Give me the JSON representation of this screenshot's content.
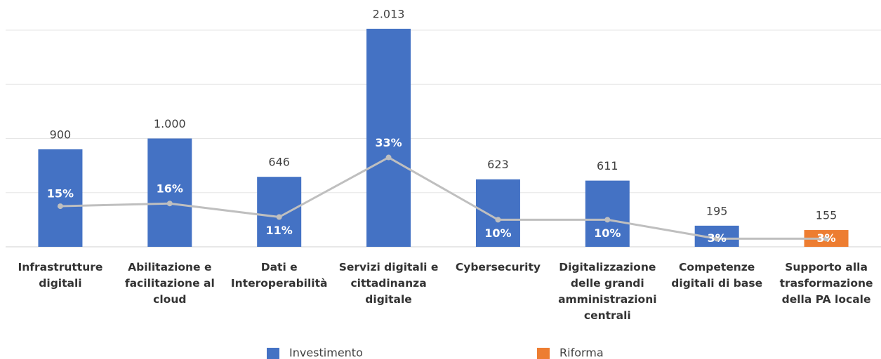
{
  "chart_data": {
    "type": "bar",
    "categories": [
      "Infrastrutture digitali",
      "Abilitazione e facilitazione al cloud",
      "Dati e Interoperabilità",
      "Servizi digitali e cittadinanza digitale",
      "Cybersecurity",
      "Digitalizzazione delle grandi amministrazioni centrali",
      "Competenze digitali di base",
      "Supporto alla trasformazione della PA locale"
    ],
    "series": [
      {
        "name": "Investimento",
        "color": "#4472c4",
        "values": [
          900,
          1000,
          646,
          2013,
          623,
          611,
          195,
          null
        ],
        "value_labels": [
          "900",
          "1.000",
          "646",
          "2.013",
          "623",
          "611",
          "195",
          null
        ]
      },
      {
        "name": "Riforma",
        "color": "#ed7d31",
        "values": [
          null,
          null,
          null,
          null,
          null,
          null,
          null,
          155
        ],
        "value_labels": [
          null,
          null,
          null,
          null,
          null,
          null,
          null,
          "155"
        ]
      }
    ],
    "line": {
      "type": "line",
      "axis": "y2",
      "color": "#bfbfbf",
      "values": [
        15,
        16,
        11,
        33,
        10,
        10,
        3,
        3
      ],
      "value_labels": [
        "15%",
        "16%",
        "11%",
        "33%",
        "10%",
        "10%",
        "3%",
        "3%"
      ]
    },
    "ylim": [
      0,
      2000
    ],
    "yticks": [
      0,
      500,
      1000,
      1500,
      2000
    ],
    "y2lim": [
      0,
      80
    ],
    "grid": true,
    "legend": "bottom"
  }
}
